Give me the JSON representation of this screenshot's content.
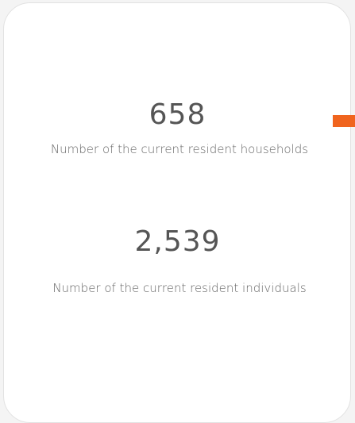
{
  "stats": [
    {
      "value": "658",
      "label": "Number of the current resident households"
    },
    {
      "value": "2,539",
      "label": "Number of the current resident individuals"
    }
  ]
}
